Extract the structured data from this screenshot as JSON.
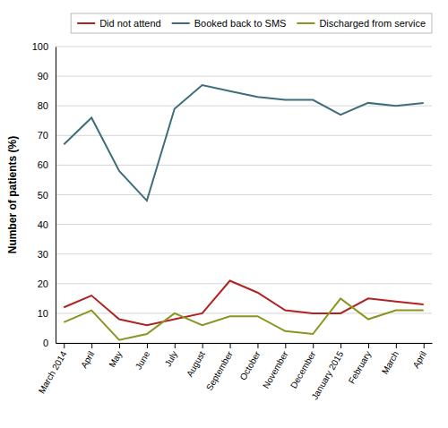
{
  "chart_data": {
    "type": "line",
    "ylabel": "Number of patients (%)",
    "categories": [
      "March 2014",
      "April",
      "May",
      "June",
      "July",
      "August",
      "September",
      "October",
      "November",
      "December",
      "January 2015",
      "February",
      "March",
      "April"
    ],
    "series": [
      {
        "name": "Did not attend",
        "color": "#b22222",
        "values": [
          12,
          16,
          8,
          6,
          8,
          10,
          21,
          17,
          11,
          10,
          10,
          15,
          14,
          13
        ]
      },
      {
        "name": "Booked back to SMS",
        "color": "#3d6e7a",
        "values": [
          67,
          76,
          58,
          48,
          79,
          87,
          85,
          83,
          82,
          82,
          77,
          81,
          80,
          81
        ]
      },
      {
        "name": "Discharged from service",
        "color": "#8a9520",
        "values": [
          7,
          11,
          1,
          3,
          10,
          6,
          9,
          9,
          4,
          3,
          15,
          8,
          11,
          11
        ]
      }
    ],
    "ylim": [
      0,
      100
    ],
    "yticks": [
      0,
      10,
      20,
      30,
      40,
      50,
      60,
      70,
      80,
      90,
      100
    ],
    "grid": true,
    "legend": "top"
  }
}
